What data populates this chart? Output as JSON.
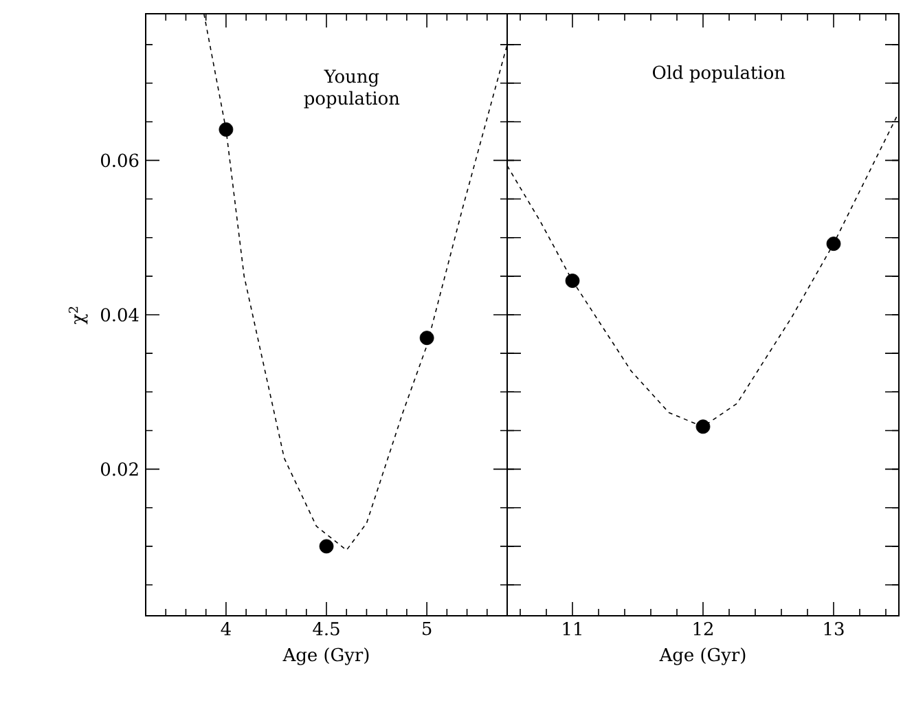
{
  "chart_data": [
    {
      "type": "scatter",
      "xlabel": "Age (Gyr)",
      "ylabel": "χ$^{2}$",
      "annotations": [
        "Young population"
      ],
      "xlim": [
        3.6,
        5.4
      ],
      "ylim": [
        0.001,
        0.079
      ],
      "xticks": [
        {
          "value": 3.7,
          "label": null
        },
        {
          "value": 3.8,
          "label": null
        },
        {
          "value": 3.9,
          "label": null
        },
        4,
        {
          "value": 4.1,
          "label": null
        },
        {
          "value": 4.2,
          "label": null
        },
        {
          "value": 4.3,
          "label": null
        },
        {
          "value": 4.4,
          "label": null
        },
        4.5,
        {
          "value": 4.6,
          "label": null
        },
        {
          "value": 4.7,
          "label": null
        },
        {
          "value": 4.8,
          "label": null
        },
        {
          "value": 4.9,
          "label": null
        },
        5,
        {
          "value": 5.1,
          "label": null
        },
        {
          "value": 5.2,
          "label": null
        },
        {
          "value": 5.3,
          "label": null
        }
      ],
      "yticks": [
        {
          "value": 0.005,
          "label": null
        },
        {
          "value": 0.01,
          "label": null
        },
        {
          "value": 0.015,
          "label": null
        },
        0.02,
        {
          "value": 0.025,
          "label": null
        },
        {
          "value": 0.03,
          "label": null
        },
        {
          "value": 0.035,
          "label": null
        },
        0.04,
        {
          "value": 0.045,
          "label": null
        },
        {
          "value": 0.05,
          "label": null
        },
        {
          "value": 0.055,
          "label": null
        },
        0.06,
        {
          "value": 0.065,
          "label": null
        },
        {
          "value": 0.07,
          "label": null
        },
        {
          "value": 0.075,
          "label": null
        }
      ],
      "series": [
        {
          "type": "line",
          "line_style": "dashed",
          "marker": "none",
          "color": "#000000",
          "x": [
            3.89,
            4.0,
            4.09,
            4.29,
            4.45,
            4.6,
            4.7,
            4.88,
            5.0,
            5.18,
            5.4
          ],
          "values": [
            0.079,
            0.064,
            0.045,
            0.0214,
            0.0126,
            0.0095,
            0.013,
            0.0273,
            0.036,
            0.054,
            0.075
          ]
        },
        {
          "marker": "circle",
          "color": "#000000",
          "x": [
            4,
            4.5,
            5
          ],
          "values": [
            0.064,
            0.01,
            0.037
          ]
        }
      ]
    },
    {
      "type": "scatter",
      "xlabel": "Age (Gyr)",
      "annotations": [
        "Old population"
      ],
      "tick_labels": "x",
      "xlim": [
        10.5,
        13.5
      ],
      "ylim": [
        0.001,
        0.079
      ],
      "xticks": [
        {
          "value": 10.6,
          "label": null
        },
        {
          "value": 10.8,
          "label": null
        },
        11,
        {
          "value": 11.2,
          "label": null
        },
        {
          "value": 11.4,
          "label": null
        },
        {
          "value": 11.6,
          "label": null
        },
        {
          "value": 11.8,
          "label": null
        },
        12,
        {
          "value": 12.2,
          "label": null
        },
        {
          "value": 12.4,
          "label": null
        },
        {
          "value": 12.6,
          "label": null
        },
        {
          "value": 12.8,
          "label": null
        },
        13,
        {
          "value": 13.2,
          "label": null
        },
        {
          "value": 13.4,
          "label": null
        }
      ],
      "yticks": [
        {
          "value": 0.005,
          "label": null
        },
        {
          "value": 0.01,
          "label": null
        },
        {
          "value": 0.015,
          "label": null
        },
        {
          "value": 0.02,
          "label": null
        },
        {
          "value": 0.025,
          "label": null
        },
        {
          "value": 0.03,
          "label": null
        },
        {
          "value": 0.035,
          "label": null
        },
        {
          "value": 0.04,
          "label": null
        },
        {
          "value": 0.045,
          "label": null
        },
        {
          "value": 0.05,
          "label": null
        },
        {
          "value": 0.055,
          "label": null
        },
        {
          "value": 0.06,
          "label": null
        },
        {
          "value": 0.065,
          "label": null
        },
        {
          "value": 0.07,
          "label": null
        },
        {
          "value": 0.075,
          "label": null
        }
      ],
      "series": [
        {
          "type": "line",
          "line_style": "dashed",
          "marker": "none",
          "color": "#000000",
          "x": [
            10.5,
            10.75,
            11.0,
            11.45,
            11.74,
            12.0,
            12.26,
            12.68,
            13.0,
            13.49
          ],
          "values": [
            0.0593,
            0.0522,
            0.0444,
            0.0327,
            0.0273,
            0.0255,
            0.0285,
            0.0397,
            0.0492,
            0.0659
          ]
        },
        {
          "marker": "circle",
          "color": "#000000",
          "x": [
            11,
            12,
            13
          ],
          "values": [
            0.0444,
            0.0255,
            0.0492
          ]
        }
      ]
    }
  ]
}
